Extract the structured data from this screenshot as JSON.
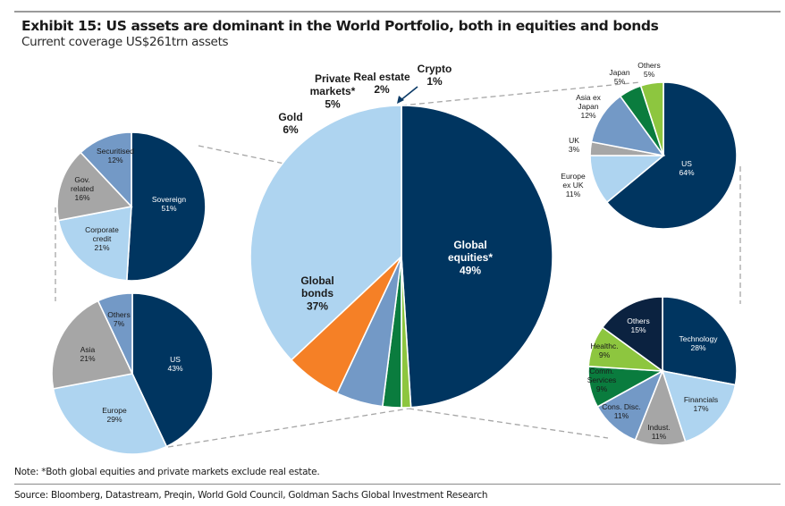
{
  "header": {
    "title": "Exhibit 15: US assets are dominant in the World Portfolio, both in equities and bonds",
    "subtitle": "Current coverage US$261trn assets"
  },
  "footer": {
    "note": "Note: *Both global equities and private markets exclude real estate.",
    "source": "Source: Bloomberg, Datastream, Preqin, World Gold Council, Goldman Sachs Global Investment Research"
  },
  "chart_data": [
    {
      "id": "world-portfolio",
      "type": "pie",
      "title": "World Portfolio",
      "unit": "%",
      "slices": [
        {
          "label": [
            "Global",
            "equities*"
          ],
          "value": 49,
          "color": "#003560",
          "label_color": "#ffffff",
          "label_inside": true
        },
        {
          "label": [
            "Crypto"
          ],
          "value": 1,
          "color": "#8dc63f",
          "label_color": "#1a1a1a",
          "label_inside": false,
          "arrow": true
        },
        {
          "label": [
            "Real estate"
          ],
          "value": 2,
          "color": "#0a7c3e",
          "label_color": "#1a1a1a",
          "label_inside": false
        },
        {
          "label": [
            "Private",
            "markets*"
          ],
          "value": 5,
          "color": "#7399c6",
          "label_color": "#1a1a1a",
          "label_inside": false
        },
        {
          "label": [
            "Gold"
          ],
          "value": 6,
          "color": "#f58026",
          "label_color": "#1a1a1a",
          "label_inside": false
        },
        {
          "label": [
            "Global",
            "bonds"
          ],
          "value": 37,
          "color": "#aed4f0",
          "label_color": "#1a1a1a",
          "label_inside": true
        }
      ]
    },
    {
      "id": "bonds-by-type",
      "type": "pie",
      "title": "Global bonds by type",
      "unit": "%",
      "slices": [
        {
          "label": [
            "Sovereign"
          ],
          "value": 51,
          "color": "#003560",
          "label_color": "#ffffff"
        },
        {
          "label": [
            "Corporate",
            "credit"
          ],
          "value": 21,
          "color": "#aed4f0",
          "label_color": "#1a1a1a"
        },
        {
          "label": [
            "Gov.",
            "related"
          ],
          "value": 16,
          "color": "#a6a6a6",
          "label_color": "#1a1a1a"
        },
        {
          "label": [
            "Securitised"
          ],
          "value": 12,
          "color": "#7399c6",
          "label_color": "#1a1a1a"
        }
      ]
    },
    {
      "id": "bonds-by-region",
      "type": "pie",
      "title": "Global bonds by region",
      "unit": "%",
      "slices": [
        {
          "label": [
            "US"
          ],
          "value": 43,
          "color": "#003560",
          "label_color": "#ffffff"
        },
        {
          "label": [
            "Europe"
          ],
          "value": 29,
          "color": "#aed4f0",
          "label_color": "#1a1a1a"
        },
        {
          "label": [
            "Asia"
          ],
          "value": 21,
          "color": "#a6a6a6",
          "label_color": "#1a1a1a"
        },
        {
          "label": [
            "Others"
          ],
          "value": 7,
          "color": "#7399c6",
          "label_color": "#1a1a1a"
        }
      ]
    },
    {
      "id": "equities-by-region",
      "type": "pie",
      "title": "Global equities by region",
      "unit": "%",
      "slices": [
        {
          "label": [
            "US"
          ],
          "value": 64,
          "color": "#003560",
          "label_color": "#ffffff",
          "label_inside": true
        },
        {
          "label": [
            "Europe",
            "ex UK"
          ],
          "value": 11,
          "color": "#aed4f0",
          "label_color": "#1a1a1a",
          "label_inside": false
        },
        {
          "label": [
            "UK"
          ],
          "value": 3,
          "color": "#a6a6a6",
          "label_color": "#1a1a1a",
          "label_inside": false
        },
        {
          "label": [
            "Asia ex",
            "Japan"
          ],
          "value": 12,
          "color": "#7399c6",
          "label_color": "#1a1a1a",
          "label_inside": false
        },
        {
          "label": [
            "Japan"
          ],
          "value": 5,
          "color": "#0a7c3e",
          "label_color": "#1a1a1a",
          "label_inside": false
        },
        {
          "label": [
            "Others"
          ],
          "value": 5,
          "color": "#8dc63f",
          "label_color": "#1a1a1a",
          "label_inside": false
        }
      ]
    },
    {
      "id": "equities-by-sector",
      "type": "pie",
      "title": "Global equities by sector",
      "unit": "%",
      "slices": [
        {
          "label": [
            "Technology"
          ],
          "value": 28,
          "color": "#003560",
          "label_color": "#ffffff"
        },
        {
          "label": [
            "Financials"
          ],
          "value": 17,
          "color": "#aed4f0",
          "label_color": "#1a1a1a"
        },
        {
          "label": [
            "Indust."
          ],
          "value": 11,
          "color": "#a6a6a6",
          "label_color": "#1a1a1a"
        },
        {
          "label": [
            "Cons. Disc."
          ],
          "value": 11,
          "color": "#7399c6",
          "label_color": "#1a1a1a"
        },
        {
          "label": [
            "Comm.",
            "Services"
          ],
          "value": 9,
          "color": "#0a7c3e",
          "label_color": "#1a1a1a"
        },
        {
          "label": [
            "Healthc."
          ],
          "value": 9,
          "color": "#8dc63f",
          "label_color": "#1a1a1a"
        },
        {
          "label": [
            "Others"
          ],
          "value": 15,
          "color": "#0b2240",
          "label_color": "#ffffff"
        }
      ]
    }
  ]
}
